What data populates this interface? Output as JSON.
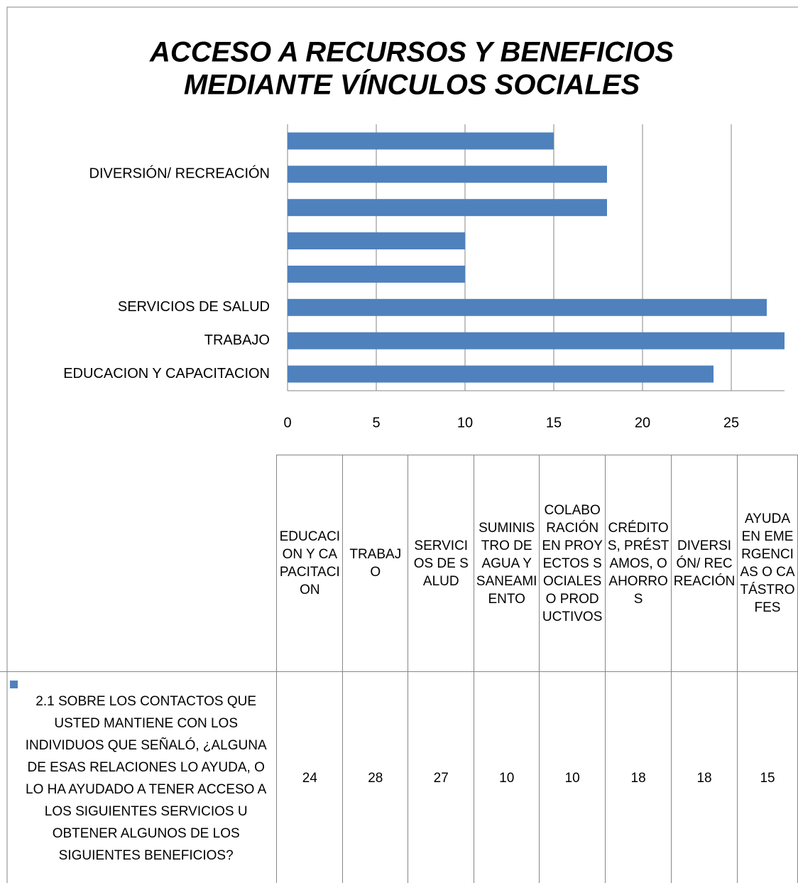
{
  "chart_data": {
    "type": "bar",
    "orientation": "horizontal",
    "title": [
      "ACCESO A RECURSOS Y BENEFICIOS",
      "MEDIANTE VÍNCULOS SOCIALES"
    ],
    "categories": [
      "EDUCACION Y CAPACITACION",
      "TRABAJO",
      "SERVICIOS DE SALUD",
      "SUMINISTRO DE AGUA Y SANEAMIENTO",
      "COLABORACIÓN EN PROYECTOS SOCIALES O PRODUCTIVOS",
      "CRÉDITOS, PRÉSTAMOS, O AHORROS",
      "DIVERSIÓN/ RECREACIÓN",
      "AYUDA EN EMERGENCIAS O CATÁSTROFES"
    ],
    "axis_labels": [
      "EDUCACION Y CAPACITACION",
      "TRABAJO",
      "SERVICIOS DE SALUD",
      null,
      null,
      null,
      "DIVERSIÓN/ RECREACIÓN",
      null
    ],
    "series": [
      {
        "name": "2.1 SOBRE LOS CONTACTOS QUE USTED MANTIENE CON LOS INDIVIDUOS QUE SEÑALÓ, ¿ALGUNA DE ESAS RELACIONES LO AYUDA, O LO HA AYUDADO A TENER ACCESO A LOS SIGUIENTES SERVICIOS U OBTENER ALGUNOS DE LOS SIGUIENTES BENEFICIOS?",
        "color": "#4f81bd",
        "values": [
          24,
          28,
          27,
          10,
          10,
          18,
          18,
          15
        ]
      }
    ],
    "xlim": [
      0,
      28
    ],
    "xticks": [
      0,
      5,
      10,
      15,
      20,
      25
    ],
    "grid": true
  }
}
